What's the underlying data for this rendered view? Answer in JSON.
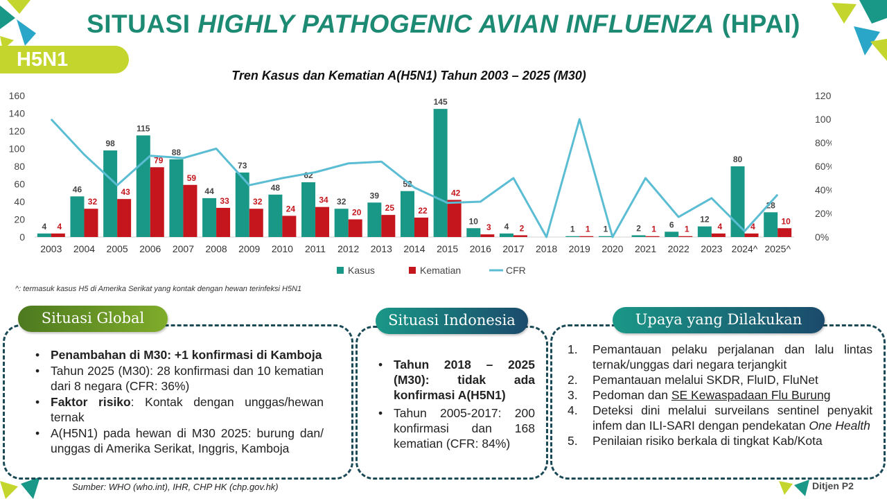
{
  "header": {
    "title_part1": "SITUASI ",
    "title_italic": "HIGHLY PATHOGENIC AVIAN INFLUENZA",
    "title_part2": " (HPAI)",
    "tag": "H5N1"
  },
  "colors": {
    "kasus": "#1a9887",
    "kematian": "#c4161c",
    "cfr": "#5bbdd3",
    "title": "#1d8a74",
    "tag": "#c4d62e"
  },
  "chart_data": {
    "type": "bar",
    "title": "Tren Kasus dan Kematian A(H5N1) Tahun 2003 – 2025 (M30)",
    "categories": [
      "2003",
      "2004",
      "2005",
      "2006",
      "2007",
      "2008",
      "2009",
      "2010",
      "2011",
      "2012",
      "2013",
      "2014",
      "2015",
      "2016",
      "2017",
      "2018",
      "2019",
      "2020",
      "2021",
      "2022",
      "2023",
      "2024^",
      "2025^"
    ],
    "series": [
      {
        "name": "Kasus",
        "type": "bar",
        "axis": "left",
        "values": [
          4,
          46,
          98,
          115,
          88,
          44,
          73,
          48,
          62,
          32,
          39,
          52,
          145,
          10,
          4,
          0,
          1,
          1,
          2,
          6,
          12,
          80,
          28
        ],
        "labels": [
          "4",
          "46",
          "98",
          "115",
          "88",
          "44",
          "73",
          "48",
          "62",
          "32",
          "39",
          "52",
          "145",
          "10",
          "4",
          "",
          "1",
          "1",
          "2",
          "6",
          "12",
          "80",
          "28"
        ]
      },
      {
        "name": "Kematian",
        "type": "bar",
        "axis": "left",
        "values": [
          4,
          32,
          43,
          79,
          59,
          33,
          32,
          24,
          34,
          20,
          25,
          22,
          42,
          3,
          2,
          0,
          1,
          0,
          1,
          1,
          4,
          4,
          10
        ],
        "labels": [
          "4",
          "32",
          "43",
          "79",
          "59",
          "33",
          "32",
          "24",
          "34",
          "20",
          "25",
          "22",
          "42",
          "3",
          "2",
          "",
          "1",
          "",
          "1",
          "1",
          "4",
          "4",
          "10"
        ]
      },
      {
        "name": "CFR",
        "type": "line",
        "axis": "right",
        "values": [
          100,
          70,
          44,
          69,
          67,
          75,
          44,
          50,
          55,
          62.5,
          64,
          42,
          29,
          30,
          50,
          0,
          100,
          0,
          50,
          17,
          33,
          5,
          36
        ]
      }
    ],
    "y_left": {
      "range": [
        0,
        160
      ],
      "ticks": [
        "0",
        "20",
        "40",
        "60",
        "80",
        "100",
        "120",
        "140",
        "160"
      ]
    },
    "y_right": {
      "range": [
        0,
        120
      ],
      "unit": "%",
      "ticks": [
        "0%",
        "20%",
        "40%",
        "60%",
        "80%",
        "100%",
        "120%"
      ]
    },
    "legend": [
      "Kasus",
      "Kematian",
      "CFR"
    ],
    "legend_position": "bottom",
    "grid": false
  },
  "footnote": "^: termasuk kasus H5 di Amerika Serikat yang kontak dengan hewan terinfeksi H5N1",
  "global": {
    "heading": "Situasi Global",
    "items": [
      {
        "bold": "Penambahan di M30: +1 konfirmasi di Kamboja",
        "text": ""
      },
      {
        "bold": "",
        "text": "Tahun 2025 (M30): 28 konfirmasi dan 10 kematian dari 8 negara (CFR: 36%)"
      },
      {
        "bold": "Faktor risiko",
        "text": ": Kontak dengan unggas/hewan ternak"
      },
      {
        "bold": "",
        "text": "A(H5N1) pada hewan di M30 2025: burung dan/ unggas di Amerika Serikat, Inggris, Kamboja"
      }
    ]
  },
  "indonesia": {
    "heading": "Situasi Indonesia",
    "items": [
      {
        "bold": "Tahun 2018 – 2025 (M30): tidak ada konfirmasi A(H5N1)",
        "text": ""
      },
      {
        "bold": "",
        "text": "Tahun 2005-2017: 200 konfirmasi dan 168 kematian (CFR: 84%)"
      }
    ]
  },
  "upaya": {
    "heading": "Upaya yang Dilakukan",
    "items": [
      {
        "num": "1.",
        "text": "Pemantauan pelaku perjalanan dan lalu lintas ternak/unggas dari negara terjangkit",
        "link": "",
        "italic": ""
      },
      {
        "num": "2.",
        "text": "Pemantauan melalui SKDR, FluID, FluNet",
        "link": "",
        "italic": ""
      },
      {
        "num": "3.",
        "text": "Pedoman dan ",
        "link": "SE Kewaspadaan Flu Burung",
        "italic": ""
      },
      {
        "num": "4.",
        "text": "Deteksi dini melalui surveilans sentinel penyakit infem dan ILI-SARI dengan pendekatan ",
        "link": "",
        "italic": "One Health"
      },
      {
        "num": "5.",
        "text": "Penilaian risiko berkala di tingkat Kab/Kota",
        "link": "",
        "italic": ""
      }
    ]
  },
  "source": "Sumber: WHO (who.int), IHR, CHP HK (chp.gov.hk)",
  "logo_text": "Ditjen P2"
}
